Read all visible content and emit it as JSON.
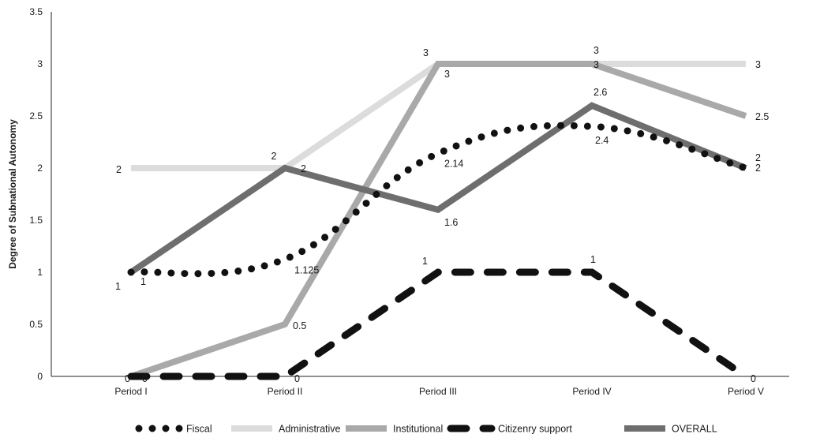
{
  "chart_data": {
    "type": "line",
    "title": "",
    "xlabel": "",
    "ylabel": "Degree of Subnational Autonomy",
    "ylim": [
      0,
      3.5
    ],
    "yticks": [
      "0",
      "0.5",
      "1",
      "1.5",
      "2",
      "2.5",
      "3",
      "3.5"
    ],
    "categories": [
      "Period I",
      "Period II",
      "Period III",
      "Period IV",
      "Period V"
    ],
    "grid": false,
    "legend_position": "bottom",
    "series": [
      {
        "name": "Fiscal",
        "values": [
          1,
          1.125,
          2.14,
          2.4,
          2
        ],
        "labels": [
          "1",
          "1.125",
          "2.14",
          "2.4",
          "2"
        ],
        "color": "#111111",
        "style": "dotted",
        "smooth": true
      },
      {
        "name": "Administrative",
        "values": [
          2,
          2,
          3,
          3,
          3
        ],
        "labels": [
          "2",
          "2",
          "3",
          "3",
          "3"
        ],
        "color": "#dcdcdc",
        "style": "solid",
        "smooth": false
      },
      {
        "name": "Institutional",
        "values": [
          0,
          0.5,
          3,
          3,
          2.5
        ],
        "labels": [
          "0",
          "0.5",
          "3",
          "3",
          "2.5"
        ],
        "color": "#a9a9a9",
        "style": "solid",
        "smooth": false
      },
      {
        "name": "Citizenry support",
        "values": [
          0,
          0,
          1,
          1,
          0
        ],
        "labels": [
          "0",
          "0",
          "1",
          "1",
          "0"
        ],
        "color": "#111111",
        "style": "dashed",
        "smooth": false
      },
      {
        "name": "OVERALL",
        "values": [
          1,
          2,
          1.6,
          2.6,
          2
        ],
        "labels": [
          "1",
          "2",
          "1.6",
          "2.6",
          "2"
        ],
        "color": "#6e6e6e",
        "style": "solid",
        "smooth": false
      }
    ]
  }
}
